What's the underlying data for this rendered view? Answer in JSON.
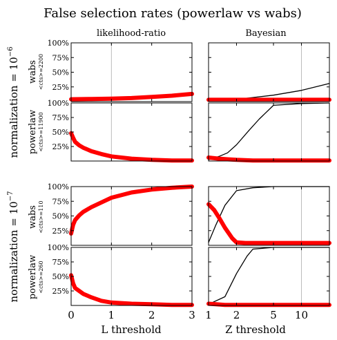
{
  "figure": {
    "title": "False selection rates (powerlaw vs wabs)",
    "columns": [
      "likelihood-ratio",
      "Bayesian"
    ],
    "x_labels": [
      "L threshold",
      "Z threshold"
    ],
    "x_ticks": [
      [
        "0",
        "1",
        "2",
        "3"
      ],
      [
        "1",
        "2",
        "5",
        "10"
      ]
    ],
    "y_ticks": [
      "25%",
      "50%",
      "75%",
      "100%"
    ],
    "groups": [
      {
        "label_prefix": "normalization = 10",
        "label_exp": "−6"
      },
      {
        "label_prefix": "normalization = 10",
        "label_exp": "−7"
      }
    ],
    "rows": [
      {
        "model": "wabs",
        "cts": "<cts>=2200"
      },
      {
        "model": "powerlaw",
        "cts": "<cts>=11900"
      },
      {
        "model": "wabs",
        "cts": "<cts>=110"
      },
      {
        "model": "powerlaw",
        "cts": "<cts>=260"
      }
    ],
    "colors": {
      "thick": "#ff0000",
      "thin": "#000000",
      "vline": "#bbbbbb"
    }
  },
  "chart_data": {
    "type": "line",
    "title": "False selection rates (powerlaw vs wabs)",
    "ylim": [
      0,
      1
    ],
    "columns": [
      {
        "name": "likelihood-ratio",
        "xlabel": "L threshold",
        "xlim": [
          0,
          3
        ],
        "xscale": "linear",
        "vline": 1
      },
      {
        "name": "Bayesian",
        "xlabel": "Z threshold",
        "xlim": [
          1,
          20
        ],
        "xscale": "log",
        "vline": 10
      }
    ],
    "panels": [
      {
        "row": 0,
        "col": 0,
        "series": [
          {
            "style": "thick",
            "x": [
              0,
              0.5,
              1,
              1.5,
              2,
              2.5,
              3
            ],
            "y": [
              0.04,
              0.045,
              0.05,
              0.06,
              0.08,
              0.1,
              0.13
            ]
          }
        ]
      },
      {
        "row": 0,
        "col": 1,
        "series": [
          {
            "style": "thin",
            "x": [
              1,
              2,
              3,
              5,
              10,
              20
            ],
            "y": [
              0.02,
              0.04,
              0.07,
              0.11,
              0.19,
              0.31
            ]
          },
          {
            "style": "thick",
            "x": [
              1,
              2,
              5,
              10,
              20
            ],
            "y": [
              0.03,
              0.03,
              0.03,
              0.03,
              0.03
            ]
          }
        ]
      },
      {
        "row": 1,
        "col": 0,
        "series": [
          {
            "style": "thick",
            "x": [
              0,
              0.05,
              0.1,
              0.2,
              0.3,
              0.5,
              0.75,
              1,
              1.5,
              2,
              2.5,
              3
            ],
            "y": [
              0.48,
              0.4,
              0.33,
              0.27,
              0.23,
              0.17,
              0.12,
              0.08,
              0.04,
              0.02,
              0.01,
              0.01
            ]
          }
        ]
      },
      {
        "row": 1,
        "col": 1,
        "series": [
          {
            "style": "thin",
            "x": [
              1,
              1.3,
              1.6,
              2,
              2.7,
              3.5,
              5,
              10,
              20
            ],
            "y": [
              0.02,
              0.08,
              0.14,
              0.28,
              0.52,
              0.72,
              0.96,
              0.99,
              1.0
            ]
          },
          {
            "style": "thick",
            "x": [
              1,
              1.3,
              1.6,
              2,
              3,
              5,
              10,
              20
            ],
            "y": [
              0.06,
              0.04,
              0.03,
              0.02,
              0.01,
              0.01,
              0.01,
              0.01
            ]
          }
        ]
      },
      {
        "row": 2,
        "col": 0,
        "series": [
          {
            "style": "thick",
            "x": [
              0,
              0.05,
              0.1,
              0.2,
              0.3,
              0.5,
              0.75,
              1,
              1.5,
              2,
              2.5,
              3
            ],
            "y": [
              0.2,
              0.35,
              0.43,
              0.51,
              0.57,
              0.65,
              0.73,
              0.81,
              0.9,
              0.95,
              0.98,
              1.0
            ]
          }
        ]
      },
      {
        "row": 2,
        "col": 1,
        "series": [
          {
            "style": "thin",
            "x": [
              1,
              1.2,
              1.5,
              2,
              3,
              5,
              10,
              20
            ],
            "y": [
              0.05,
              0.35,
              0.68,
              0.93,
              0.98,
              1.0,
              1.0,
              1.0
            ]
          },
          {
            "style": "thick",
            "x": [
              1,
              1.15,
              1.3,
              1.5,
              1.8,
              2,
              2.5,
              3,
              5,
              10,
              20
            ],
            "y": [
              0.7,
              0.6,
              0.47,
              0.3,
              0.12,
              0.05,
              0.04,
              0.04,
              0.04,
              0.04,
              0.04
            ]
          }
        ]
      },
      {
        "row": 3,
        "col": 0,
        "series": [
          {
            "style": "thick",
            "x": [
              0,
              0.05,
              0.1,
              0.2,
              0.3,
              0.5,
              0.75,
              1,
              1.5,
              2,
              2.5,
              3
            ],
            "y": [
              0.52,
              0.38,
              0.3,
              0.25,
              0.2,
              0.14,
              0.08,
              0.05,
              0.03,
              0.02,
              0.01,
              0.01
            ]
          }
        ]
      },
      {
        "row": 3,
        "col": 1,
        "series": [
          {
            "style": "thin",
            "x": [
              1,
              1.5,
              2,
              2.6,
              3,
              5,
              10,
              20
            ],
            "y": [
              0.02,
              0.15,
              0.55,
              0.85,
              0.97,
              1.0,
              1.0,
              1.0
            ]
          },
          {
            "style": "thick",
            "x": [
              1,
              1.2,
              1.5,
              2,
              5,
              10,
              20
            ],
            "y": [
              0.03,
              0.02,
              0.01,
              0.01,
              0.01,
              0.01,
              0.01
            ]
          }
        ]
      }
    ]
  }
}
